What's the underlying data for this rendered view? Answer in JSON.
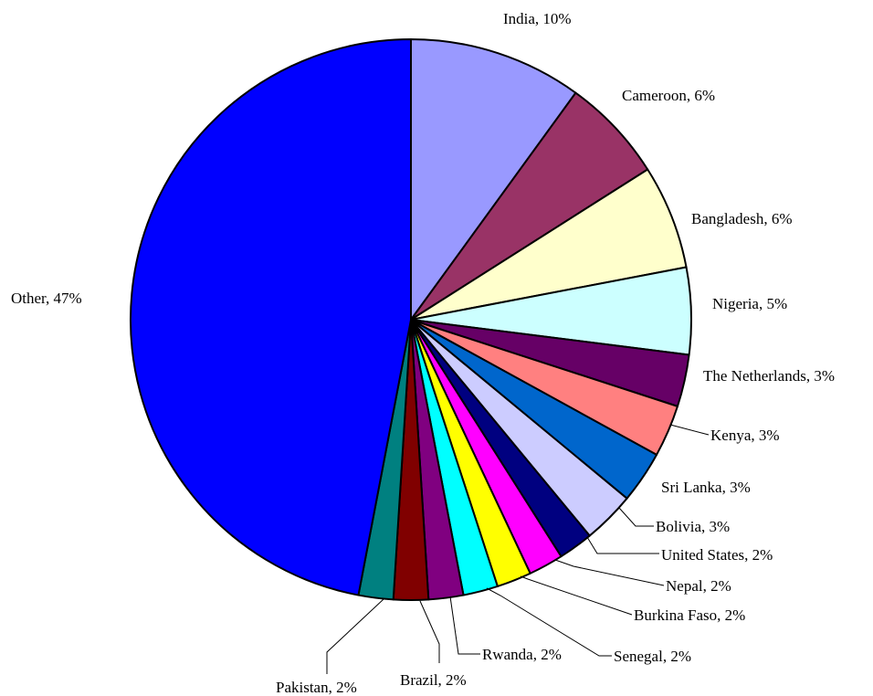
{
  "chart_data": {
    "type": "pie",
    "title": "",
    "slices": [
      {
        "label": "India",
        "value": 10,
        "display": "India, 10%",
        "color": "#9999FF"
      },
      {
        "label": "Cameroon",
        "value": 6,
        "display": "Cameroon, 6%",
        "color": "#993366"
      },
      {
        "label": "Bangladesh",
        "value": 6,
        "display": "Bangladesh, 6%",
        "color": "#FFFFCC"
      },
      {
        "label": "Nigeria",
        "value": 5,
        "display": "Nigeria, 5%",
        "color": "#CCFFFF"
      },
      {
        "label": "The Netherlands",
        "value": 3,
        "display": "The Netherlands, 3%",
        "color": "#660066"
      },
      {
        "label": "Kenya",
        "value": 3,
        "display": "Kenya, 3%",
        "color": "#FF8080"
      },
      {
        "label": "Sri Lanka",
        "value": 3,
        "display": "Sri Lanka, 3%",
        "color": "#0066CC"
      },
      {
        "label": "Bolivia",
        "value": 3,
        "display": "Bolivia, 3%",
        "color": "#CCCCFF"
      },
      {
        "label": "United States",
        "value": 2,
        "display": "United States, 2%",
        "color": "#000080"
      },
      {
        "label": "Nepal",
        "value": 2,
        "display": "Nepal, 2%",
        "color": "#FF00FF"
      },
      {
        "label": "Burkina Faso",
        "value": 2,
        "display": "Burkina Faso, 2%",
        "color": "#FFFF00"
      },
      {
        "label": "Senegal",
        "value": 2,
        "display": "Senegal, 2%",
        "color": "#00FFFF"
      },
      {
        "label": "Rwanda",
        "value": 2,
        "display": "Rwanda, 2%",
        "color": "#800080"
      },
      {
        "label": "Brazil",
        "value": 2,
        "display": "Brazil, 2%",
        "color": "#800000"
      },
      {
        "label": "Pakistan",
        "value": 2,
        "display": "Pakistan, 2%",
        "color": "#008080"
      },
      {
        "label": "Other",
        "value": 47,
        "display": "Other, 47%",
        "color": "#0000FF"
      }
    ]
  }
}
